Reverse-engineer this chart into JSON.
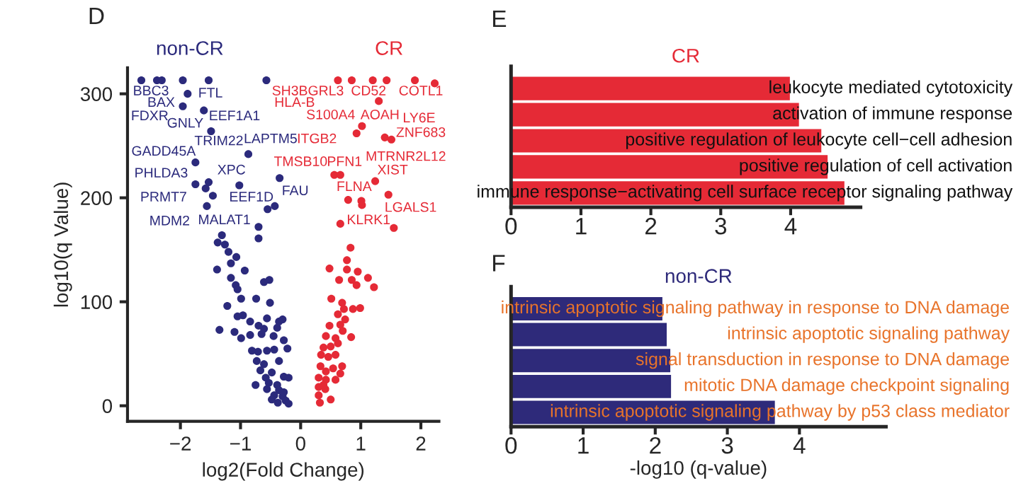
{
  "chart_data": [
    {
      "type": "scatter",
      "xlabel": "log2(Fold Change)",
      "ylabel": "log10(q Value)",
      "xlim": [
        -2.88,
        2.3
      ],
      "ylim": [
        -15,
        325
      ],
      "xticks": [
        -2,
        -1,
        0,
        1,
        2
      ],
      "yticks": [
        0,
        100,
        200,
        300
      ],
      "marker": "circle",
      "grid": false,
      "legend": false,
      "series": [
        {
          "name": "non-CR",
          "color": "#2b2a7c",
          "x": [
            -2.65,
            -2.39,
            -2.31,
            -1.96,
            -1.53,
            -0.57,
            -1.88,
            -1.96,
            -1.61,
            -1.49,
            -0.87,
            -1.75,
            -0.35,
            -1.75,
            -1.53,
            -1.02,
            -1.58,
            -1.46,
            -1.56,
            -0.43,
            -0.55,
            -0.7,
            -0.7,
            -1.31,
            -1.38,
            -1.26,
            -1.2,
            -1.07,
            -1.39,
            -1.16,
            -0.93,
            -1.16,
            -1.08,
            -1.05,
            -0.61,
            -0.52,
            -0.99,
            -0.74,
            -1.22,
            -0.51,
            -1.05,
            -0.96,
            -0.84,
            -0.56,
            -0.3,
            -1.35,
            -1.1,
            -0.84,
            -0.7,
            -0.61,
            -0.39,
            -0.36,
            -0.99,
            -0.65,
            -0.45,
            -0.28,
            -0.81,
            -0.71,
            -0.56,
            -0.44,
            -0.22,
            -0.73,
            -0.61,
            -0.36,
            -0.67,
            -0.48,
            -0.28,
            -0.2,
            -0.75,
            -0.53,
            -0.39,
            -0.56,
            -0.36,
            -0.44,
            -0.3,
            -0.25,
            -0.38,
            -0.2,
            -0.48,
            -0.28,
            -0.58
          ],
          "values": [
            313,
            313,
            313,
            313,
            313,
            313,
            300,
            288,
            284,
            264,
            242,
            234,
            219,
            213,
            215,
            212,
            209,
            202,
            192,
            192,
            189,
            172,
            161,
            164,
            157,
            155,
            148,
            143,
            131,
            137,
            130,
            123,
            116,
            112,
            119,
            121,
            103,
            103,
            96,
            99,
            86,
            87,
            81,
            84,
            83,
            73,
            71,
            68,
            77,
            74,
            75,
            81,
            65,
            69,
            67,
            63,
            53,
            52,
            53,
            54,
            55,
            43,
            40,
            43,
            34,
            32,
            28,
            27,
            20,
            22,
            20,
            16,
            15,
            10,
            9,
            5,
            3,
            2,
            6,
            13,
            27
          ]
        },
        {
          "name": "CR",
          "color": "#e52a36",
          "x": [
            0.62,
            0.85,
            1.2,
            1.43,
            1.9,
            2.23,
            1.3,
            1.02,
            0.93,
            1.4,
            1.51,
            0.56,
            0.66,
            1.24,
            1.46,
            0.79,
            1.01,
            1.02,
            0.66,
            1.55,
            0.83,
            0.77,
            0.48,
            0.77,
            0.95,
            1.12,
            0.64,
            0.85,
            1.22,
            0.93,
            0.51,
            0.69,
            0.72,
            0.87,
            0.99,
            0.62,
            0.74,
            0.48,
            0.66,
            0.84,
            0.42,
            0.58,
            0.7,
            0.38,
            0.5,
            0.62,
            0.34,
            0.46,
            0.58,
            0.69,
            0.33,
            0.42,
            0.54,
            0.3,
            0.42,
            0.58,
            0.3,
            0.41,
            0.3,
            0.5,
            0.32,
            0.38,
            0.66
          ],
          "values": [
            313,
            313,
            313,
            313,
            313,
            310,
            293,
            269,
            262,
            258,
            256,
            222,
            222,
            216,
            203,
            198,
            197,
            193,
            175,
            171,
            152,
            140,
            132,
            131,
            129,
            123,
            121,
            121,
            114,
            116,
            103,
            99,
            93,
            93,
            94,
            88,
            83,
            77,
            78,
            66,
            67,
            65,
            72,
            56,
            57,
            60,
            49,
            47,
            49,
            38,
            38,
            33,
            36,
            27,
            25,
            25,
            18,
            16,
            10,
            6,
            3,
            20,
            31
          ]
        }
      ],
      "annotations": [
        "D",
        "BBC3",
        "FTL",
        "BAX",
        "FDXR",
        "GNLY",
        "EEF1A1",
        "TRIM22",
        "LAPTM5",
        "GADD45A",
        "PHLDA3",
        "XPC",
        "PRMT7",
        "EEF1D",
        "FAU",
        "MDM2",
        "MALAT1",
        "SH3BGRL3",
        "CD52",
        "COTL1",
        "HLA-B",
        "S100A4",
        "AOAH",
        "LY6E",
        "ITGB2",
        "ZNF683",
        "MTRNR2L12",
        "TMSB10",
        "PFN1",
        "XIST",
        "FLNA",
        "LGALS1",
        "KLRK1"
      ]
    },
    {
      "type": "bar",
      "orientation": "horizontal",
      "title": "CR",
      "categories": [
        "leukocyte mediated cytotoxicity",
        "activation of immune response",
        "positive regulation of leukocyte cell−cell adhesion",
        "positive regulation of cell activation",
        "immune response−activating cell surface receptor signaling pathway"
      ],
      "values": [
        4.0,
        4.13,
        4.45,
        4.54,
        4.78
      ],
      "color": "#e52a36",
      "xlim": [
        0,
        5
      ],
      "xticks": [
        0,
        1,
        2,
        3,
        4
      ],
      "grid": false,
      "legend": false,
      "annotations": [
        "E"
      ]
    },
    {
      "type": "bar",
      "orientation": "horizontal",
      "title": "non-CR",
      "xlabel": "-log10 (q-value)",
      "categories": [
        "intrinsic apoptotic signaling pathway in response to DNA damage",
        "intrinsic apoptotic signaling pathway",
        "signal transduction in response to DNA damage",
        "mitotic DNA damage checkpoint signaling",
        "intrinsic apoptotic signaling pathway by p53 class mediator"
      ],
      "values": [
        2.11,
        2.17,
        2.22,
        2.23,
        3.67
      ],
      "color": "#2e2a7a",
      "xlim": [
        0,
        5.2
      ],
      "xticks": [
        0,
        1,
        2,
        3,
        4
      ],
      "grid": false,
      "legend": false,
      "annotations": [
        "F"
      ]
    }
  ]
}
